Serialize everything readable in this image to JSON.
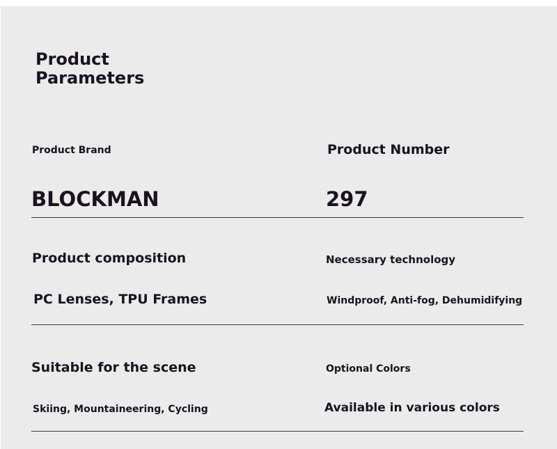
{
  "title": {
    "line1": "Product",
    "line2": "Parameters"
  },
  "rows": [
    {
      "left": {
        "label": "Product Brand",
        "value": "BLOCKMAN"
      },
      "right": {
        "label": "Product Number",
        "value": "297"
      }
    },
    {
      "left": {
        "label": "Product composition",
        "value": "PC Lenses, TPU Frames"
      },
      "right": {
        "label": "Necessary technology",
        "value": "Windproof, Anti-fog, Dehumidifying"
      }
    },
    {
      "left": {
        "label": "Suitable for the scene",
        "value": "Skiing, Mountaineering, Cycling"
      },
      "right": {
        "label": "Optional Colors",
        "value": "Available in various colors"
      }
    }
  ]
}
